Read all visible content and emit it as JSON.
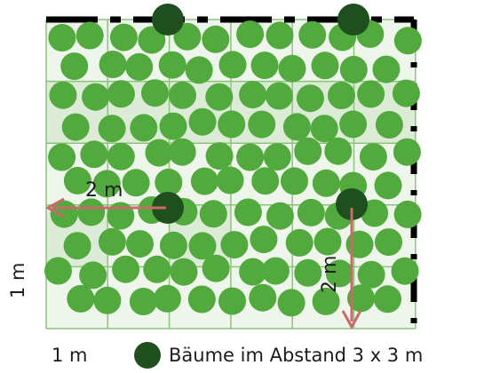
{
  "scale": {
    "x_label": "1 m",
    "y_label": "1 m"
  },
  "legend": {
    "label": "Bäume im Abstand 3 x 3 m"
  },
  "dimensions": {
    "horizontal": "2 m",
    "vertical": "2 m"
  },
  "colors": {
    "tree": "#1f4f1f",
    "shrub": "#52a93e",
    "grid_line": "#8cc47c",
    "field_light": "#eef5ea",
    "field_dark": "#dcebd5",
    "arrow": "#c96a6a",
    "border": "#000000"
  },
  "grid": {
    "columns": 6,
    "rows": 5
  },
  "trees_count_visible": 4
}
